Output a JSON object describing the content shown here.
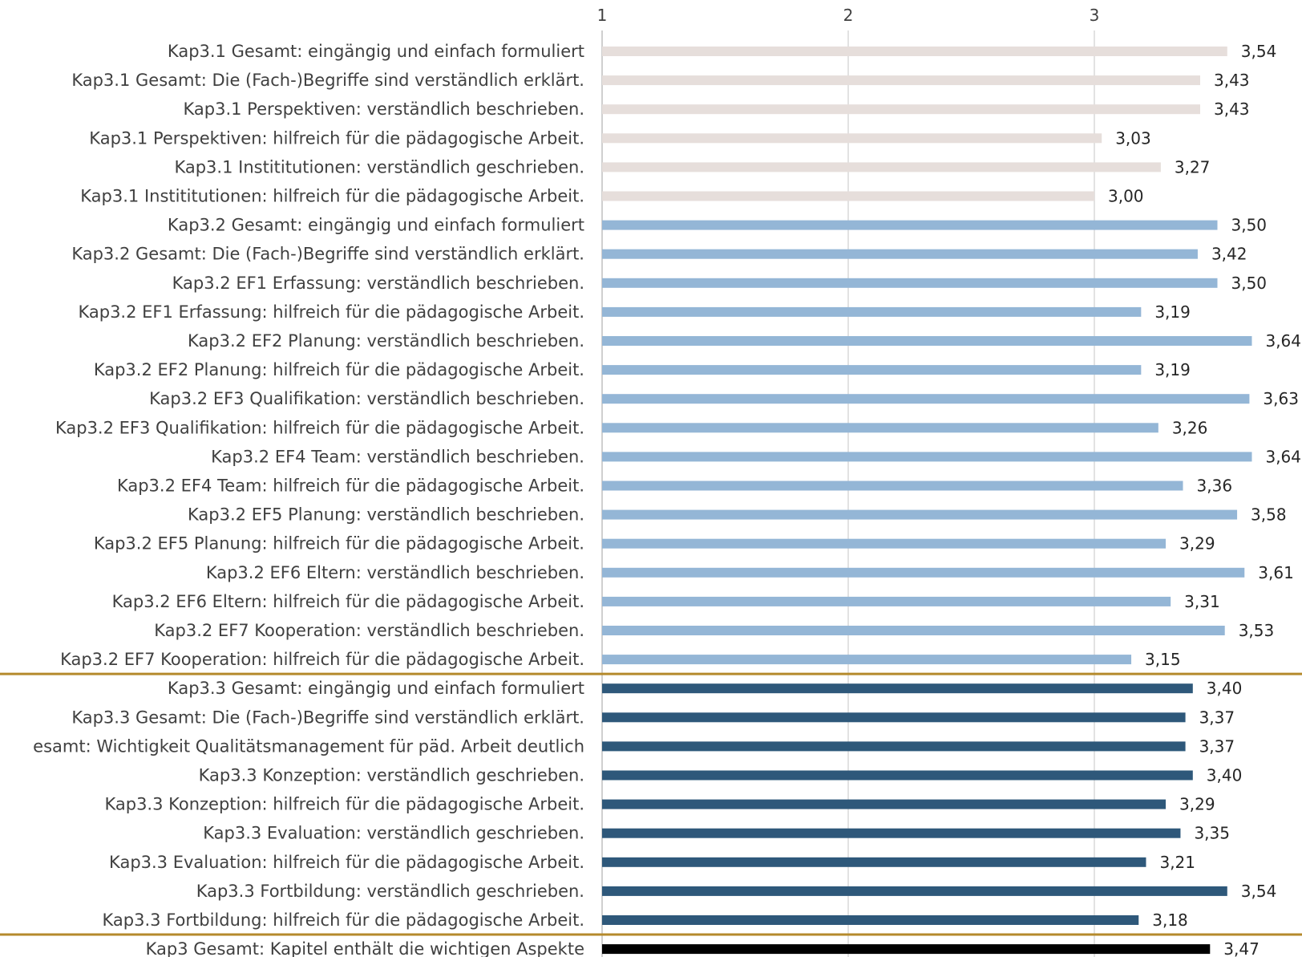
{
  "chart_data": {
    "type": "bar",
    "orientation": "horizontal",
    "title": "",
    "xlabel": "",
    "ylabel": "",
    "xlim": [
      1,
      3.8
    ],
    "x_ticks": [
      "1",
      "2",
      "3"
    ],
    "grid": true,
    "legend": "none",
    "group_colors": {
      "kap31": "#e6dedb",
      "kap32": "#94b6d6",
      "kap33": "#2e587a",
      "total": "#000000"
    },
    "separator_color": "#b58a2c",
    "categories": [
      "Kap3.1 Gesamt: eingängig und einfach formuliert",
      "Kap3.1 Gesamt: Die (Fach-)Begriffe sind verständlich erklärt.",
      "Kap3.1 Perspektiven: verständlich beschrieben.",
      "Kap3.1 Perspektiven: hilfreich für die pädagogische Arbeit.",
      "Kap3.1 Instititutionen: verständlich geschrieben.",
      "Kap3.1 Instititutionen: hilfreich für die pädagogische Arbeit.",
      "Kap3.2 Gesamt:  eingängig und einfach formuliert",
      "Kap3.2 Gesamt: Die (Fach-)Begriffe sind verständlich erklärt.",
      "Kap3.2 EF1 Erfassung: verständlich beschrieben.",
      "Kap3.2 EF1 Erfassung: hilfreich für die pädagogische Arbeit.",
      "Kap3.2 EF2 Planung: verständlich beschrieben.",
      "Kap3.2 EF2 Planung: hilfreich für die pädagogische Arbeit.",
      "Kap3.2 EF3 Qualifikation: verständlich beschrieben.",
      "Kap3.2 EF3 Qualifikation: hilfreich für die pädagogische Arbeit.",
      "Kap3.2 EF4 Team: verständlich beschrieben.",
      "Kap3.2 EF4 Team: hilfreich für die pädagogische Arbeit.",
      "Kap3.2 EF5 Planung: verständlich beschrieben.",
      "Kap3.2 EF5 Planung: hilfreich für die pädagogische Arbeit.",
      "Kap3.2 EF6 Eltern: verständlich beschrieben.",
      "Kap3.2 EF6 Eltern: hilfreich für die pädagogische Arbeit.",
      "Kap3.2 EF7 Kooperation: verständlich beschrieben.",
      "Kap3.2 EF7 Kooperation: hilfreich für die pädagogische Arbeit.",
      "Kap3.3 Gesamt: eingängig und einfach formuliert",
      "Kap3.3 Gesamt: Die (Fach-)Begriffe sind verständlich erklärt.",
      "esamt: Wichtigkeit Qualitätsmanagement für päd. Arbeit deutlich",
      "Kap3.3 Konzeption: verständlich geschrieben.",
      "Kap3.3 Konzeption: hilfreich für die pädagogische Arbeit.",
      "Kap3.3 Evaluation: verständlich geschrieben.",
      "Kap3.3 Evaluation: hilfreich für die pädagogische Arbeit.",
      "Kap3.3 Fortbildung: verständlich geschrieben.",
      "Kap3.3 Fortbildung: hilfreich für die pädagogische Arbeit.",
      "Kap3 Gesamt: Kapitel enthält die wichtigen Aspekte"
    ],
    "values": [
      3.54,
      3.43,
      3.43,
      3.03,
      3.27,
      3.0,
      3.5,
      3.42,
      3.5,
      3.19,
      3.64,
      3.19,
      3.63,
      3.26,
      3.64,
      3.36,
      3.58,
      3.29,
      3.61,
      3.31,
      3.53,
      3.15,
      3.4,
      3.37,
      3.37,
      3.4,
      3.29,
      3.35,
      3.21,
      3.54,
      3.18,
      3.47
    ],
    "value_labels": [
      "3,54",
      "3,43",
      "3,43",
      "3,03",
      "3,27",
      "3,00",
      "3,50",
      "3,42",
      "3,50",
      "3,19",
      "3,64",
      "3,19",
      "3,63",
      "3,26",
      "3,64",
      "3,36",
      "3,58",
      "3,29",
      "3,61",
      "3,31",
      "3,53",
      "3,15",
      "3,40",
      "3,37",
      "3,37",
      "3,40",
      "3,29",
      "3,35",
      "3,21",
      "3,54",
      "3,18",
      "3,47"
    ],
    "groups": [
      "kap31",
      "kap31",
      "kap31",
      "kap31",
      "kap31",
      "kap31",
      "kap32",
      "kap32",
      "kap32",
      "kap32",
      "kap32",
      "kap32",
      "kap32",
      "kap32",
      "kap32",
      "kap32",
      "kap32",
      "kap32",
      "kap32",
      "kap32",
      "kap32",
      "kap32",
      "kap33",
      "kap33",
      "kap33",
      "kap33",
      "kap33",
      "kap33",
      "kap33",
      "kap33",
      "kap33",
      "total"
    ]
  }
}
